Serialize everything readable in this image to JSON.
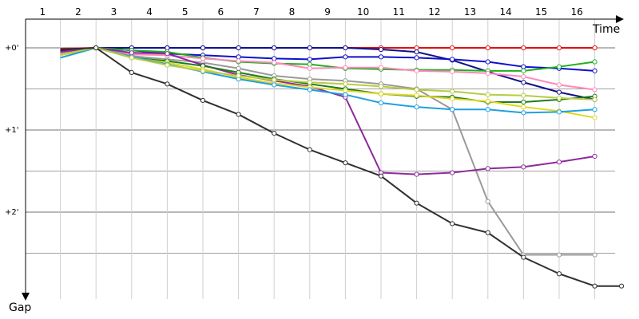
{
  "chart_data": {
    "type": "line",
    "xlabel": "Time",
    "ylabel": "Gap",
    "x_ticks": [
      "1",
      "2",
      "3",
      "4",
      "5",
      "6",
      "7",
      "8",
      "9",
      "10",
      "11",
      "12",
      "13",
      "14",
      "15",
      "16"
    ],
    "y_ticks": [
      {
        "label": "+0'",
        "value": 0
      },
      {
        "label": "+1'",
        "value": 1
      },
      {
        "label": "+2'",
        "value": 2
      }
    ],
    "ylim": [
      0,
      2.9
    ],
    "grid": true,
    "series": [
      {
        "color": "#e01010",
        "x": [
          1,
          2,
          3,
          4,
          5,
          6,
          7,
          8,
          9,
          10,
          11,
          12,
          13,
          14,
          15,
          16
        ],
        "values": [
          0.01,
          0.0,
          0.0,
          0.0,
          0.0,
          0.0,
          0.0,
          0.0,
          0.0,
          0.0,
          0.0,
          0.0,
          0.0,
          0.0,
          0.0,
          0.0
        ]
      },
      {
        "color": "#10108c",
        "x": [
          1,
          2,
          3,
          4,
          5,
          6,
          7,
          8,
          9,
          10,
          11,
          12,
          13,
          14,
          15,
          16
        ],
        "values": [
          0.03,
          0.0,
          0.0,
          0.0,
          0.0,
          0.0,
          0.0,
          0.0,
          0.0,
          0.02,
          0.05,
          0.15,
          0.29,
          0.42,
          0.54,
          0.63
        ]
      },
      {
        "color": "#1010cc",
        "x": [
          1,
          2,
          3,
          4,
          5,
          6,
          7,
          8,
          9,
          10,
          11,
          12,
          13,
          14,
          15,
          16
        ],
        "values": [
          0.05,
          0.0,
          0.03,
          0.07,
          0.09,
          0.11,
          0.13,
          0.14,
          0.11,
          0.11,
          0.12,
          0.14,
          0.17,
          0.23,
          0.25,
          0.28
        ]
      },
      {
        "color": "#20b020",
        "x": [
          1,
          2,
          3,
          4,
          5,
          6,
          7,
          8,
          9,
          10,
          11,
          12,
          13,
          14,
          15,
          16
        ],
        "values": [
          0.06,
          0.0,
          0.03,
          0.05,
          0.12,
          0.17,
          0.19,
          0.2,
          0.25,
          0.26,
          0.27,
          0.27,
          0.28,
          0.28,
          0.23,
          0.17
        ]
      },
      {
        "color": "#ff88bb",
        "x": [
          1,
          2,
          3,
          4,
          5,
          6,
          7,
          8,
          9,
          10,
          11,
          12,
          13,
          14,
          15,
          16
        ],
        "values": [
          0.07,
          0.0,
          0.08,
          0.09,
          0.13,
          0.16,
          0.18,
          0.25,
          0.24,
          0.24,
          0.28,
          0.29,
          0.31,
          0.35,
          0.45,
          0.51
        ]
      },
      {
        "color": "#9a9a9a",
        "x": [
          1,
          2,
          3,
          4,
          5,
          6,
          7,
          8,
          9,
          10,
          11,
          12,
          13,
          14,
          15,
          16
        ],
        "values": [
          0.08,
          0.0,
          0.1,
          0.14,
          0.18,
          0.25,
          0.34,
          0.38,
          0.4,
          0.44,
          0.5,
          0.75,
          1.87,
          2.52,
          2.52,
          2.52
        ]
      },
      {
        "color": "#8e2a9a",
        "x": [
          1,
          2,
          3,
          4,
          5,
          6,
          7,
          8,
          9,
          10,
          11,
          12,
          13,
          14,
          15,
          16
        ],
        "values": [
          0.05,
          0.0,
          0.06,
          0.07,
          0.21,
          0.33,
          0.4,
          0.47,
          0.6,
          1.52,
          1.54,
          1.52,
          1.47,
          1.45,
          1.39,
          1.32
        ]
      },
      {
        "color": "#1e7a1e",
        "x": [
          1,
          2,
          3,
          4,
          5,
          6,
          7,
          8,
          9,
          10,
          11,
          12,
          13,
          14,
          15,
          16
        ],
        "values": [
          0.08,
          0.0,
          0.12,
          0.16,
          0.22,
          0.3,
          0.38,
          0.44,
          0.5,
          0.56,
          0.59,
          0.6,
          0.66,
          0.66,
          0.63,
          0.59
        ]
      },
      {
        "color": "#e0d820",
        "x": [
          1,
          2,
          3,
          4,
          5,
          6,
          7,
          8,
          9,
          10,
          11,
          12,
          13,
          14,
          15,
          16
        ],
        "values": [
          0.09,
          0.0,
          0.12,
          0.18,
          0.26,
          0.36,
          0.43,
          0.48,
          0.52,
          0.56,
          0.58,
          0.62,
          0.65,
          0.72,
          0.77,
          0.85
        ]
      },
      {
        "color": "#20a0e0",
        "x": [
          1,
          2,
          3,
          4,
          5,
          6,
          7,
          8,
          9,
          10,
          11,
          12,
          13,
          14,
          15,
          16
        ],
        "values": [
          0.12,
          0.0,
          0.11,
          0.2,
          0.29,
          0.38,
          0.45,
          0.51,
          0.57,
          0.67,
          0.72,
          0.75,
          0.75,
          0.79,
          0.78,
          0.75
        ]
      },
      {
        "color": "#b8cc40",
        "x": [
          1,
          2,
          3,
          4,
          5,
          6,
          7,
          8,
          9,
          10,
          11,
          12,
          13,
          14,
          15,
          16
        ],
        "values": [
          0.08,
          0.0,
          0.12,
          0.21,
          0.28,
          0.34,
          0.39,
          0.42,
          0.44,
          0.47,
          0.51,
          0.53,
          0.57,
          0.58,
          0.61,
          0.63
        ]
      },
      {
        "color": "#303030",
        "x": [
          1,
          2,
          3,
          4,
          5,
          6,
          7,
          8,
          9,
          10,
          11,
          12,
          13,
          14,
          15,
          16,
          16.75
        ],
        "values": [
          0.02,
          0.0,
          0.3,
          0.44,
          0.64,
          0.81,
          1.04,
          1.24,
          1.4,
          1.56,
          1.89,
          2.14,
          2.25,
          2.55,
          2.75,
          2.9,
          2.9
        ]
      }
    ]
  }
}
